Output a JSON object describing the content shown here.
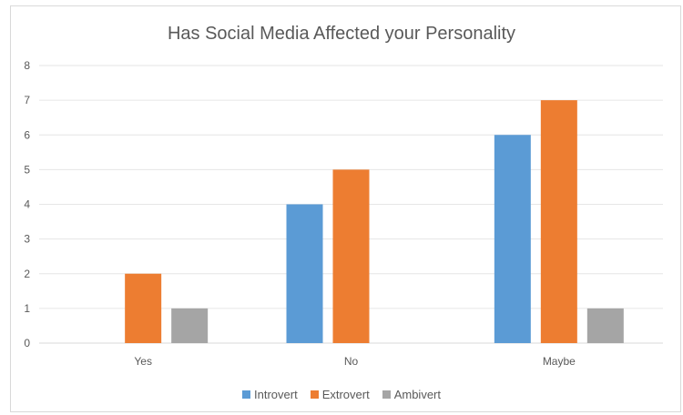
{
  "chart_data": {
    "type": "bar",
    "title": "Has Social Media Affected your Personality",
    "xlabel": "",
    "ylabel": "",
    "categories": [
      "Yes",
      "No",
      "Maybe"
    ],
    "ylim": [
      0,
      8
    ],
    "yticks": [
      "0",
      "1",
      "2",
      "3",
      "4",
      "5",
      "6",
      "7",
      "8"
    ],
    "grid": true,
    "legend_position": "bottom",
    "series": [
      {
        "name": "Introvert",
        "color": "#5b9bd5",
        "values": [
          0,
          4,
          6
        ]
      },
      {
        "name": "Extrovert",
        "color": "#ed7d31",
        "values": [
          2,
          5,
          7
        ]
      },
      {
        "name": "Ambivert",
        "color": "#a5a5a5",
        "values": [
          1,
          0,
          1
        ]
      }
    ]
  }
}
